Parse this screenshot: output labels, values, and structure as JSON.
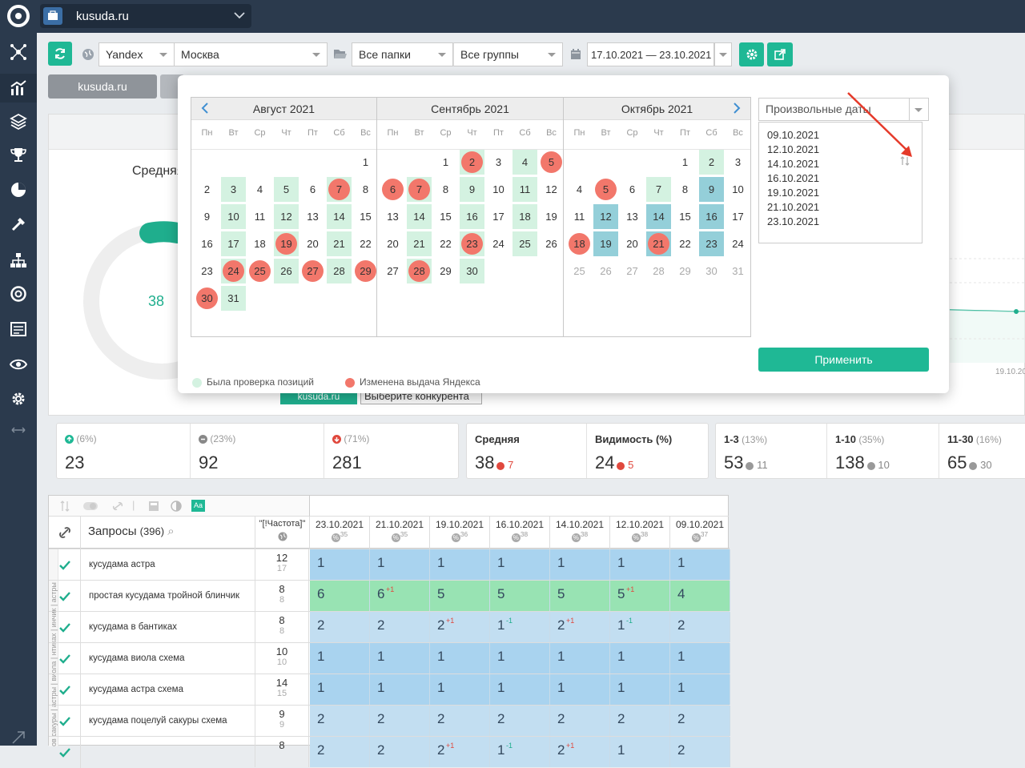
{
  "project": {
    "name": "kusuda.ru"
  },
  "toolbar": {
    "engine": "Yandex",
    "region": "Москва",
    "folders": "Все папки",
    "groups": "Все группы",
    "date_range": "17.10.2021 — 23.10.2021",
    "tab_domain": "kusuda.ru"
  },
  "overview": {
    "avg_label": "Средняя",
    "donut_value": "38",
    "right_date": "19.10.20",
    "legend_self": "kusuda.ru",
    "competitor_placeholder": "Выберите конкурента"
  },
  "calendar": {
    "months": [
      {
        "title": "Август 2021",
        "offset": 6,
        "days": 31,
        "green": [
          3,
          5,
          7,
          10,
          12,
          14,
          17,
          19,
          21,
          24,
          26,
          28,
          31
        ],
        "teal": [],
        "red": [
          7,
          19,
          24,
          25,
          27,
          29,
          30
        ],
        "prev_tail": [],
        "next_head": []
      },
      {
        "title": "Сентябрь 2021",
        "offset": 2,
        "days": 30,
        "green": [
          2,
          4,
          7,
          9,
          11,
          14,
          16,
          18,
          21,
          23,
          25,
          28,
          30
        ],
        "teal": [],
        "red": [
          2,
          5,
          6,
          7,
          23,
          28
        ],
        "prev_tail": [],
        "next_head": []
      },
      {
        "title": "Октябрь 2021",
        "offset": 4,
        "days": 31,
        "green": [
          2,
          7
        ],
        "teal": [
          9,
          12,
          14,
          16,
          19,
          21,
          23
        ],
        "red": [
          5,
          18,
          21
        ],
        "prev_tail": [],
        "next_head": []
      }
    ],
    "weekdays": [
      "Пн",
      "Вт",
      "Ср",
      "Чт",
      "Пт",
      "Сб",
      "Вс"
    ],
    "mode": "Произвольные даты",
    "selected_dates": [
      "09.10.2021",
      "12.10.2021",
      "14.10.2021",
      "16.10.2021",
      "19.10.2021",
      "21.10.2021",
      "23.10.2021"
    ],
    "apply": "Применить",
    "legend_checked": "Была проверка позиций",
    "legend_changed": "Изменена выдача Яндекса",
    "colors": {
      "green": "#d4f2e1",
      "teal": "#94cfd9",
      "red": "#f2776b",
      "accent": "#1fb895"
    }
  },
  "stats": {
    "up": {
      "pct": "(6%)",
      "value": "23"
    },
    "same": {
      "pct": "(23%)",
      "value": "92"
    },
    "down": {
      "pct": "(71%)",
      "value": "281"
    },
    "avg": {
      "label": "Средняя",
      "value": "38",
      "delta": "7"
    },
    "vis": {
      "label": "Видимость (%)",
      "value": "24",
      "delta": "5"
    },
    "t13": {
      "label": "1-3",
      "pct": "(13%)",
      "value": "53",
      "delta": "11"
    },
    "t110": {
      "label": "1-10",
      "pct": "(35%)",
      "value": "138",
      "delta": "10"
    },
    "t1130": {
      "label": "11-30",
      "pct": "(16%)",
      "value": "65",
      "delta": "30"
    }
  },
  "table": {
    "queries_label": "Запросы",
    "queries_count": "(396)",
    "freq_label": "\"[!Частота]\"",
    "dates": [
      {
        "d": "23.10.2021",
        "n": "35"
      },
      {
        "d": "21.10.2021",
        "n": "35"
      },
      {
        "d": "19.10.2021",
        "n": "36"
      },
      {
        "d": "16.10.2021",
        "n": "38"
      },
      {
        "d": "14.10.2021",
        "n": "38"
      },
      {
        "d": "12.10.2021",
        "n": "38"
      },
      {
        "d": "09.10.2021",
        "n": "37"
      }
    ],
    "rows": [
      {
        "q": "кусудама астра",
        "f1": "12",
        "f2": "17",
        "color": "blue",
        "p": [
          "1",
          "1",
          "1",
          "1",
          "1",
          "1",
          "1"
        ],
        "s": [
          "",
          "",
          "",
          "",
          "",
          "",
          ""
        ]
      },
      {
        "q": "простая кусудама тройной блинчик",
        "f1": "8",
        "f2": "8",
        "color": "green",
        "p": [
          "6",
          "6",
          "5",
          "5",
          "5",
          "5",
          "4"
        ],
        "s": [
          "",
          "+1",
          "",
          "",
          "",
          "+1",
          ""
        ]
      },
      {
        "q": "кусудама в бантиках",
        "f1": "8",
        "f2": "8",
        "color": "light",
        "p": [
          "2",
          "2",
          "2",
          "1",
          "2",
          "1",
          "2"
        ],
        "s": [
          "",
          "",
          "+1",
          "-1",
          "+1",
          "-1",
          ""
        ]
      },
      {
        "q": "кусудама виола схема",
        "f1": "10",
        "f2": "10",
        "color": "blue",
        "p": [
          "1",
          "1",
          "1",
          "1",
          "1",
          "1",
          "1"
        ],
        "s": [
          "",
          "",
          "",
          "",
          "",
          "",
          ""
        ]
      },
      {
        "q": "кусудама астра схема",
        "f1": "14",
        "f2": "15",
        "color": "blue",
        "p": [
          "1",
          "1",
          "1",
          "1",
          "1",
          "1",
          "1"
        ],
        "s": [
          "",
          "",
          "",
          "",
          "",
          "",
          ""
        ]
      },
      {
        "q": "кусудама поцелуй сакуры схема",
        "f1": "9",
        "f2": "9",
        "color": "light",
        "p": [
          "2",
          "2",
          "2",
          "2",
          "2",
          "2",
          "2"
        ],
        "s": [
          "",
          "",
          "",
          "",
          "",
          "",
          ""
        ]
      },
      {
        "q": "",
        "f1": "8",
        "f2": "",
        "color": "light",
        "p": [
          "2",
          "2",
          "2",
          "1",
          "2",
          "1",
          "2"
        ],
        "s": [
          "",
          "",
          "+1",
          "-1",
          "+1",
          "",
          ""
        ]
      }
    ],
    "side_text": "ов сакуры | астры | виола | нтиках | инчик | астры"
  }
}
